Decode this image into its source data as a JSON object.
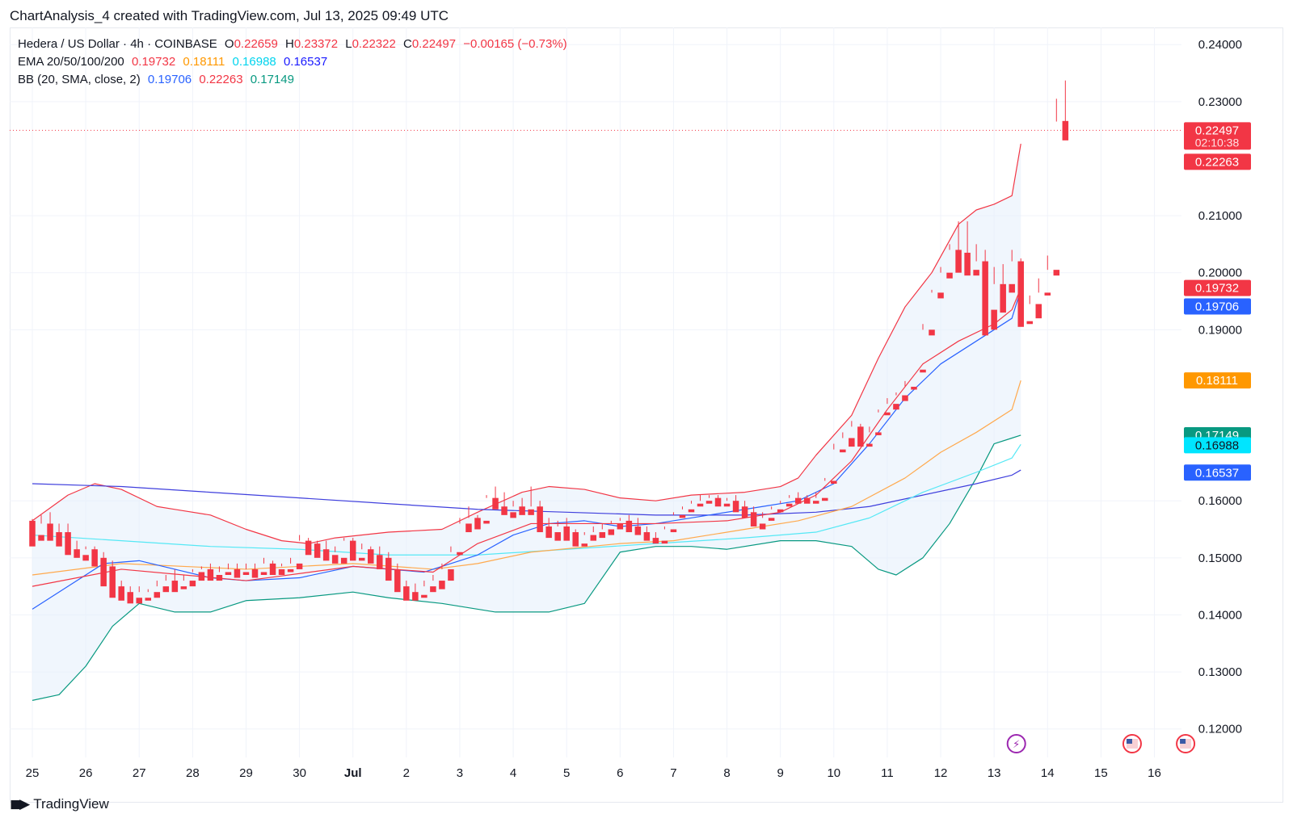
{
  "header": {
    "title": "ChartAnalysis_4 created with TradingView.com, Jul 13, 2025 09:49 UTC"
  },
  "legend": {
    "symbol": "Hedera / US Dollar · 4h · COINBASE",
    "o_label": "O",
    "o": "0.22659",
    "h_label": "H",
    "h": "0.23372",
    "l_label": "L",
    "l": "0.22322",
    "c_label": "C",
    "c": "0.22497",
    "change": "−0.00165 (−0.73%)",
    "ema_label": "EMA 20/50/100/200",
    "ema20": "0.19732",
    "ema50": "0.18111",
    "ema100": "0.16988",
    "ema200": "0.16537",
    "bb_label": "BB (20, SMA, close, 2)",
    "bb_basis": "0.19706",
    "bb_upper": "0.22263",
    "bb_lower": "0.17149"
  },
  "footer": {
    "brand": "TradingView",
    "logo": "tradingview-logo"
  },
  "colors": {
    "up": "#22ab94",
    "down": "#f23645",
    "ema20": "#f23645",
    "ema50": "#ff9800",
    "ema100": "#00e5ff",
    "ema200": "#2962ff",
    "bb_basis": "#2962ff",
    "bb_upper": "#f23645",
    "bb_lower": "#089981",
    "bb_fill": "#e3effb"
  },
  "chart_data": {
    "type": "candlestick",
    "title": "Hedera / US Dollar · 4h · COINBASE",
    "ylim": [
      0.115,
      0.243
    ],
    "y_ticks": [
      "0.24000",
      "0.23000",
      "0.21000",
      "0.20000",
      "0.19000",
      "0.16000",
      "0.15000",
      "0.14000",
      "0.13000",
      "0.12000"
    ],
    "x_ticks": [
      {
        "label": "25",
        "x": 0
      },
      {
        "label": "26",
        "x": 6
      },
      {
        "label": "27",
        "x": 12
      },
      {
        "label": "28",
        "x": 18
      },
      {
        "label": "29",
        "x": 24
      },
      {
        "label": "30",
        "x": 30
      },
      {
        "label": "Jul",
        "x": 36
      },
      {
        "label": "2",
        "x": 42
      },
      {
        "label": "3",
        "x": 48
      },
      {
        "label": "4",
        "x": 54
      },
      {
        "label": "5",
        "x": 60
      },
      {
        "label": "6",
        "x": 66
      },
      {
        "label": "7",
        "x": 72
      },
      {
        "label": "8",
        "x": 78
      },
      {
        "label": "9",
        "x": 84
      },
      {
        "label": "10",
        "x": 90
      },
      {
        "label": "11",
        "x": 96
      },
      {
        "label": "12",
        "x": 102
      },
      {
        "label": "13",
        "x": 108
      },
      {
        "label": "14",
        "x": 114
      },
      {
        "label": "15",
        "x": 120
      },
      {
        "label": "16",
        "x": 126
      }
    ],
    "candles": [
      [
        0.1565,
        0.1568,
        0.1545,
        0.152
      ],
      [
        0.154,
        0.1575,
        0.156,
        0.153
      ],
      [
        0.156,
        0.158,
        0.1545,
        0.153
      ],
      [
        0.1545,
        0.156,
        0.154,
        0.152
      ],
      [
        0.1545,
        0.156,
        0.151,
        0.1505
      ],
      [
        0.1515,
        0.153,
        0.151,
        0.15
      ],
      [
        0.1505,
        0.152,
        0.1515,
        0.1495
      ],
      [
        0.1515,
        0.152,
        0.15,
        0.1485
      ],
      [
        0.15,
        0.151,
        0.1485,
        0.145
      ],
      [
        0.1485,
        0.1495,
        0.145,
        0.143
      ],
      [
        0.145,
        0.146,
        0.144,
        0.1425
      ],
      [
        0.144,
        0.145,
        0.143,
        0.142
      ],
      [
        0.143,
        0.145,
        0.144,
        0.142
      ],
      [
        0.143,
        0.1445,
        0.144,
        0.1425
      ],
      [
        0.144,
        0.146,
        0.145,
        0.143
      ],
      [
        0.145,
        0.147,
        0.146,
        0.144
      ],
      [
        0.146,
        0.148,
        0.145,
        0.144
      ],
      [
        0.145,
        0.147,
        0.146,
        0.1445
      ],
      [
        0.146,
        0.148,
        0.1475,
        0.145
      ],
      [
        0.1475,
        0.1485,
        0.148,
        0.146
      ],
      [
        0.148,
        0.149,
        0.147,
        0.146
      ],
      [
        0.147,
        0.1485,
        0.1475,
        0.146
      ],
      [
        0.1475,
        0.149,
        0.148,
        0.147
      ],
      [
        0.148,
        0.149,
        0.1475,
        0.1465
      ],
      [
        0.1475,
        0.149,
        0.148,
        0.147
      ],
      [
        0.148,
        0.149,
        0.1475,
        0.1465
      ],
      [
        0.1475,
        0.15,
        0.149,
        0.147
      ],
      [
        0.149,
        0.1495,
        0.148,
        0.147
      ],
      [
        0.148,
        0.149,
        0.1485,
        0.147
      ],
      [
        0.148,
        0.15,
        0.149,
        0.1475
      ],
      [
        0.149,
        0.154,
        0.153,
        0.148
      ],
      [
        0.153,
        0.1535,
        0.1525,
        0.1505
      ],
      [
        0.1525,
        0.153,
        0.1515,
        0.15
      ],
      [
        0.1515,
        0.153,
        0.1505,
        0.1495
      ],
      [
        0.1505,
        0.152,
        0.151,
        0.149
      ],
      [
        0.15,
        0.1535,
        0.153,
        0.149
      ],
      [
        0.153,
        0.1535,
        0.15,
        0.1495
      ],
      [
        0.15,
        0.1525,
        0.1515,
        0.1495
      ],
      [
        0.1515,
        0.152,
        0.1505,
        0.149
      ],
      [
        0.1505,
        0.152,
        0.15,
        0.148
      ],
      [
        0.15,
        0.151,
        0.148,
        0.146
      ],
      [
        0.148,
        0.149,
        0.145,
        0.144
      ],
      [
        0.145,
        0.146,
        0.144,
        0.1425
      ],
      [
        0.144,
        0.1455,
        0.1435,
        0.1425
      ],
      [
        0.1435,
        0.146,
        0.145,
        0.143
      ],
      [
        0.145,
        0.147,
        0.146,
        0.144
      ],
      [
        0.146,
        0.149,
        0.148,
        0.1445
      ],
      [
        0.148,
        0.152,
        0.151,
        0.146
      ],
      [
        0.151,
        0.157,
        0.156,
        0.1505
      ],
      [
        0.156,
        0.159,
        0.157,
        0.1545
      ],
      [
        0.157,
        0.1575,
        0.1565,
        0.155
      ],
      [
        0.1565,
        0.161,
        0.1605,
        0.156
      ],
      [
        0.1605,
        0.1625,
        0.159,
        0.1585
      ],
      [
        0.159,
        0.1615,
        0.158,
        0.1575
      ],
      [
        0.158,
        0.16,
        0.159,
        0.157
      ],
      [
        0.159,
        0.1605,
        0.1585,
        0.1575
      ],
      [
        0.1585,
        0.1625,
        0.159,
        0.1575
      ],
      [
        0.159,
        0.16,
        0.1555,
        0.1545
      ],
      [
        0.1555,
        0.157,
        0.1545,
        0.1535
      ],
      [
        0.1545,
        0.1565,
        0.1555,
        0.153
      ],
      [
        0.1555,
        0.157,
        0.1545,
        0.153
      ],
      [
        0.1545,
        0.155,
        0.1525,
        0.152
      ],
      [
        0.1525,
        0.1545,
        0.154,
        0.152
      ],
      [
        0.154,
        0.1555,
        0.1545,
        0.153
      ],
      [
        0.1545,
        0.156,
        0.155,
        0.1535
      ],
      [
        0.155,
        0.1565,
        0.156,
        0.154
      ],
      [
        0.156,
        0.157,
        0.1565,
        0.155
      ],
      [
        0.1565,
        0.1575,
        0.1555,
        0.1545
      ],
      [
        0.1555,
        0.157,
        0.1545,
        0.154
      ],
      [
        0.1545,
        0.1555,
        0.1535,
        0.153
      ],
      [
        0.1535,
        0.1545,
        0.153,
        0.1525
      ],
      [
        0.153,
        0.1555,
        0.155,
        0.1525
      ],
      [
        0.155,
        0.158,
        0.1575,
        0.1545
      ],
      [
        0.1575,
        0.159,
        0.1585,
        0.157
      ],
      [
        0.1585,
        0.16,
        0.1595,
        0.158
      ],
      [
        0.1595,
        0.161,
        0.16,
        0.159
      ],
      [
        0.16,
        0.161,
        0.1605,
        0.1595
      ],
      [
        0.1605,
        0.161,
        0.1595,
        0.159
      ],
      [
        0.1595,
        0.1605,
        0.16,
        0.159
      ],
      [
        0.16,
        0.161,
        0.159,
        0.158
      ],
      [
        0.159,
        0.16,
        0.158,
        0.157
      ],
      [
        0.158,
        0.159,
        0.156,
        0.1555
      ],
      [
        0.156,
        0.158,
        0.157,
        0.155
      ],
      [
        0.157,
        0.159,
        0.1585,
        0.1565
      ],
      [
        0.1585,
        0.16,
        0.1595,
        0.158
      ],
      [
        0.1595,
        0.161,
        0.1605,
        0.159
      ],
      [
        0.1605,
        0.1615,
        0.1605,
        0.1595
      ],
      [
        0.1605,
        0.161,
        0.16,
        0.1595
      ],
      [
        0.16,
        0.1615,
        0.1605,
        0.1595
      ],
      [
        0.1605,
        0.164,
        0.1635,
        0.16
      ],
      [
        0.1635,
        0.17,
        0.169,
        0.163
      ],
      [
        0.169,
        0.172,
        0.171,
        0.1685
      ],
      [
        0.171,
        0.174,
        0.173,
        0.1695
      ],
      [
        0.173,
        0.1735,
        0.17,
        0.1695
      ],
      [
        0.17,
        0.173,
        0.172,
        0.1695
      ],
      [
        0.172,
        0.176,
        0.1755,
        0.1715
      ],
      [
        0.1755,
        0.178,
        0.177,
        0.175
      ],
      [
        0.177,
        0.179,
        0.1785,
        0.176
      ],
      [
        0.1785,
        0.181,
        0.18,
        0.1775
      ],
      [
        0.18,
        0.183,
        0.183,
        0.1795
      ],
      [
        0.183,
        0.191,
        0.19,
        0.1825
      ],
      [
        0.19,
        0.197,
        0.1965,
        0.189
      ],
      [
        0.1965,
        0.201,
        0.2,
        0.1955
      ],
      [
        0.2,
        0.205,
        0.204,
        0.199
      ],
      [
        0.204,
        0.209,
        0.2035,
        0.2
      ],
      [
        0.2035,
        0.209,
        0.2005,
        0.1995
      ],
      [
        0.2005,
        0.205,
        0.202,
        0.1995
      ],
      [
        0.202,
        0.204,
        0.1935,
        0.189
      ],
      [
        0.1935,
        0.201,
        0.198,
        0.19
      ],
      [
        0.198,
        0.2015,
        0.198,
        0.193
      ],
      [
        0.198,
        0.204,
        0.202,
        0.1965
      ],
      [
        0.202,
        0.2025,
        0.1915,
        0.1905
      ],
      [
        0.1915,
        0.196,
        0.1945,
        0.191
      ],
      [
        0.1945,
        0.199,
        0.1965,
        0.192
      ],
      [
        0.1965,
        0.203,
        0.2005,
        0.196
      ],
      [
        0.2005,
        0.2305,
        0.2265,
        0.1995
      ],
      [
        0.2266,
        0.2337,
        0.225,
        0.2232
      ]
    ],
    "ema20": [
      [
        0,
        0.145
      ],
      [
        10,
        0.148
      ],
      [
        24,
        0.146
      ],
      [
        36,
        0.1485
      ],
      [
        45,
        0.1475
      ],
      [
        50,
        0.1525
      ],
      [
        56,
        0.156
      ],
      [
        62,
        0.156
      ],
      [
        70,
        0.156
      ],
      [
        78,
        0.1565
      ],
      [
        84,
        0.158
      ],
      [
        88,
        0.161
      ],
      [
        92,
        0.167
      ],
      [
        96,
        0.176
      ],
      [
        100,
        0.184
      ],
      [
        104,
        0.188
      ],
      [
        108,
        0.191
      ],
      [
        110,
        0.1935
      ],
      [
        111,
        0.1973
      ]
    ],
    "ema50": [
      [
        0,
        0.147
      ],
      [
        10,
        0.149
      ],
      [
        24,
        0.148
      ],
      [
        36,
        0.149
      ],
      [
        45,
        0.148
      ],
      [
        50,
        0.149
      ],
      [
        56,
        0.151
      ],
      [
        66,
        0.1525
      ],
      [
        72,
        0.153
      ],
      [
        80,
        0.155
      ],
      [
        86,
        0.1565
      ],
      [
        92,
        0.159
      ],
      [
        98,
        0.164
      ],
      [
        102,
        0.1685
      ],
      [
        106,
        0.172
      ],
      [
        110,
        0.176
      ],
      [
        111,
        0.1811
      ]
    ],
    "ema100": [
      [
        0,
        0.154
      ],
      [
        10,
        0.153
      ],
      [
        20,
        0.152
      ],
      [
        30,
        0.1515
      ],
      [
        40,
        0.1505
      ],
      [
        50,
        0.1505
      ],
      [
        60,
        0.1515
      ],
      [
        70,
        0.1525
      ],
      [
        80,
        0.1535
      ],
      [
        88,
        0.1545
      ],
      [
        94,
        0.157
      ],
      [
        100,
        0.1615
      ],
      [
        106,
        0.165
      ],
      [
        110,
        0.1675
      ],
      [
        111,
        0.1699
      ]
    ],
    "ema200": [
      [
        0,
        0.163
      ],
      [
        10,
        0.1625
      ],
      [
        20,
        0.1615
      ],
      [
        30,
        0.1605
      ],
      [
        40,
        0.1595
      ],
      [
        50,
        0.1585
      ],
      [
        60,
        0.158
      ],
      [
        70,
        0.1575
      ],
      [
        80,
        0.1575
      ],
      [
        88,
        0.158
      ],
      [
        94,
        0.159
      ],
      [
        100,
        0.161
      ],
      [
        106,
        0.163
      ],
      [
        110,
        0.1645
      ],
      [
        111,
        0.1654
      ]
    ],
    "bb_upper": [
      [
        0,
        0.1565
      ],
      [
        4,
        0.161
      ],
      [
        7,
        0.163
      ],
      [
        10,
        0.162
      ],
      [
        14,
        0.159
      ],
      [
        16,
        0.1585
      ],
      [
        20,
        0.1575
      ],
      [
        24,
        0.155
      ],
      [
        28,
        0.153
      ],
      [
        31,
        0.1525
      ],
      [
        34,
        0.1535
      ],
      [
        40,
        0.1545
      ],
      [
        46,
        0.155
      ],
      [
        50,
        0.158
      ],
      [
        55,
        0.1615
      ],
      [
        58,
        0.1625
      ],
      [
        62,
        0.162
      ],
      [
        66,
        0.1605
      ],
      [
        70,
        0.16
      ],
      [
        74,
        0.161
      ],
      [
        80,
        0.1615
      ],
      [
        84,
        0.1625
      ],
      [
        86,
        0.164
      ],
      [
        88,
        0.168
      ],
      [
        92,
        0.175
      ],
      [
        95,
        0.185
      ],
      [
        98,
        0.194
      ],
      [
        101,
        0.2
      ],
      [
        104,
        0.2085
      ],
      [
        106,
        0.211
      ],
      [
        108,
        0.212
      ],
      [
        110,
        0.2135
      ],
      [
        111,
        0.2226
      ]
    ],
    "bb_basis": [
      [
        0,
        0.141
      ],
      [
        4,
        0.145
      ],
      [
        8,
        0.149
      ],
      [
        12,
        0.1495
      ],
      [
        16,
        0.148
      ],
      [
        20,
        0.1465
      ],
      [
        24,
        0.146
      ],
      [
        30,
        0.1465
      ],
      [
        36,
        0.1485
      ],
      [
        40,
        0.148
      ],
      [
        44,
        0.1475
      ],
      [
        50,
        0.1505
      ],
      [
        54,
        0.154
      ],
      [
        58,
        0.156
      ],
      [
        62,
        0.1565
      ],
      [
        66,
        0.1555
      ],
      [
        70,
        0.156
      ],
      [
        76,
        0.1575
      ],
      [
        82,
        0.159
      ],
      [
        86,
        0.16
      ],
      [
        90,
        0.163
      ],
      [
        94,
        0.17
      ],
      [
        98,
        0.178
      ],
      [
        102,
        0.184
      ],
      [
        106,
        0.188
      ],
      [
        110,
        0.192
      ],
      [
        111,
        0.1971
      ]
    ],
    "bb_lower": [
      [
        0,
        0.125
      ],
      [
        3,
        0.126
      ],
      [
        6,
        0.131
      ],
      [
        9,
        0.138
      ],
      [
        12,
        0.142
      ],
      [
        16,
        0.1405
      ],
      [
        20,
        0.1405
      ],
      [
        24,
        0.1425
      ],
      [
        30,
        0.143
      ],
      [
        36,
        0.144
      ],
      [
        40,
        0.143
      ],
      [
        46,
        0.142
      ],
      [
        52,
        0.1405
      ],
      [
        58,
        0.1405
      ],
      [
        62,
        0.142
      ],
      [
        66,
        0.151
      ],
      [
        70,
        0.152
      ],
      [
        74,
        0.152
      ],
      [
        78,
        0.1515
      ],
      [
        84,
        0.153
      ],
      [
        88,
        0.153
      ],
      [
        92,
        0.152
      ],
      [
        95,
        0.148
      ],
      [
        97,
        0.147
      ],
      [
        100,
        0.15
      ],
      [
        103,
        0.156
      ],
      [
        106,
        0.164
      ],
      [
        108,
        0.17
      ],
      [
        110,
        0.171
      ],
      [
        111,
        0.1715
      ]
    ],
    "price_labels": [
      {
        "value": 0.22497,
        "text": "0.22497",
        "sub": "02:10:38",
        "color": "#f23645"
      },
      {
        "value": 0.22263,
        "text": "0.22263",
        "color": "#f23645"
      },
      {
        "value": 0.19732,
        "text": "0.19732",
        "color": "#f23645"
      },
      {
        "value": 0.19706,
        "text": "0.19706",
        "color": "#2962ff"
      },
      {
        "value": 0.18111,
        "text": "0.18111",
        "color": "#ff9800"
      },
      {
        "value": 0.17149,
        "text": "0.17149",
        "color": "#089981"
      },
      {
        "value": 0.16988,
        "text": "0.16988",
        "color": "#00e5ff"
      },
      {
        "value": 0.16537,
        "text": "0.16537",
        "color": "#2962ff"
      }
    ],
    "current_price": 0.22497,
    "event_icons": [
      {
        "name": "lightning-event-icon",
        "x": 110.5,
        "glyph": "⚡",
        "color": "#9c27b0"
      },
      {
        "name": "us-flag-event-icon",
        "x": 123.5,
        "glyph": "",
        "color": "#f23645"
      },
      {
        "name": "us-flag-event-icon-2",
        "x": 129.5,
        "glyph": "",
        "color": "#f23645"
      }
    ]
  }
}
